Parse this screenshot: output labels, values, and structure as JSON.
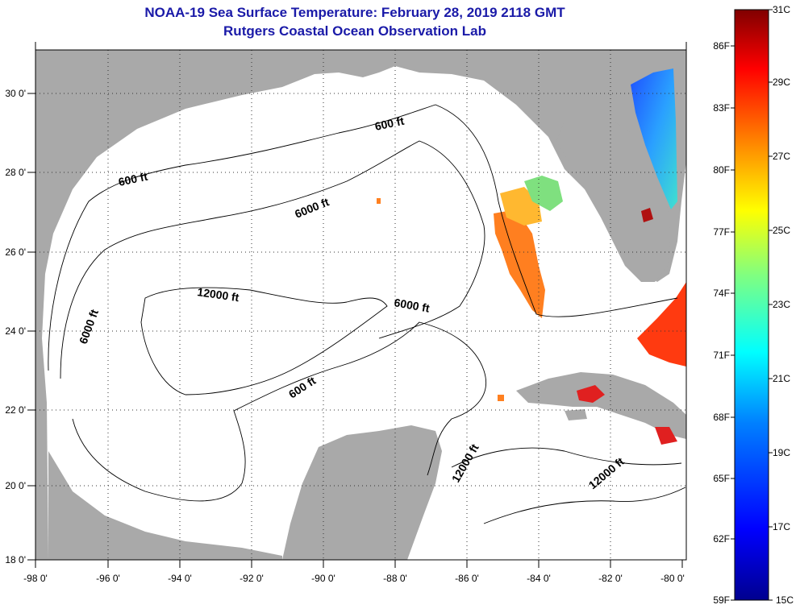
{
  "title": "NOAA-19 Sea Surface Temperature:  February 28, 2019 2118 GMT",
  "subtitle": "Rutgers Coastal Ocean Observation Lab",
  "x_ticks": [
    "-98 0'",
    "-96 0'",
    "-94 0'",
    "-92 0'",
    "-90 0'",
    "-88 0'",
    "-86 0'",
    "-84 0'",
    "-82 0'",
    "-80 0'"
  ],
  "y_ticks": [
    "30 0'",
    "28 0'",
    "26 0'",
    "24 0'",
    "22 0'",
    "20 0'",
    "18 0'"
  ],
  "colorbar": {
    "f_labels": [
      "86F",
      "83F",
      "80F",
      "77F",
      "74F",
      "71F",
      "68F",
      "65F",
      "62F",
      "59F"
    ],
    "c_labels": [
      "31C",
      "29C",
      "27C",
      "25C",
      "23C",
      "21C",
      "19C",
      "17C",
      "15C"
    ]
  },
  "contour_labels": {
    "l600_nw": "600 ft",
    "l600_ne": "600 ft",
    "l600_c": "600 ft",
    "l6000_n": "6000 ft",
    "l6000_w": "6000 ft",
    "l6000_e": "6000 ft",
    "l12000_c": "12000 ft",
    "l12000_s": "12000 ft",
    "l12000_se": "12000 ft"
  },
  "colors": {
    "land": "#a9a9a9",
    "ocean": "#ffffff",
    "title": "#1a1aa8"
  }
}
